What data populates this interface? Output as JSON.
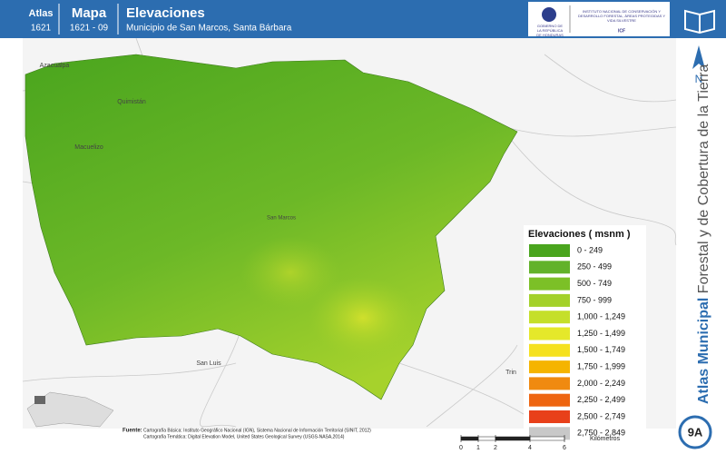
{
  "header": {
    "atlas_label": "Atlas",
    "atlas_code": "1621",
    "map_label": "Mapa",
    "map_code": "1621 - 09",
    "title": "Elevaciones",
    "subtitle": "Municipio de San Marcos, Santa Bárbara"
  },
  "logos": {
    "government": "GOBIERNO DE LA REPÚBLICA DE HONDURAS",
    "institute": "INSTITUTO NACIONAL DE CONSERVACIÓN Y DESARROLLO FORESTAL, ÁREAS PROTEGIDAS Y VIDA SILVESTRE",
    "acronym": "ICF"
  },
  "places": [
    "Azacualpa",
    "Quimistán",
    "Macuelizo",
    "San Marcos",
    "San Luis",
    "Trin"
  ],
  "legend": {
    "title": "Elevaciones ( msnm )",
    "items": [
      {
        "label": "0 - 249",
        "color": "#4aa51e"
      },
      {
        "label": "250 - 499",
        "color": "#62b22a"
      },
      {
        "label": "500 - 749",
        "color": "#7cc027"
      },
      {
        "label": "750 - 999",
        "color": "#a3d12a"
      },
      {
        "label": "1,000 - 1,249",
        "color": "#c5df2a"
      },
      {
        "label": "1,250 - 1,499",
        "color": "#e5e82a"
      },
      {
        "label": "1,500 - 1,749",
        "color": "#f5e11f"
      },
      {
        "label": "1,750 - 1,999",
        "color": "#f5b400"
      },
      {
        "label": "2,000 - 2,249",
        "color": "#f08a10"
      },
      {
        "label": "2,250 - 2,499",
        "color": "#ee6510"
      },
      {
        "label": "2,500 - 2,749",
        "color": "#e8401a"
      },
      {
        "label": "2,750 - 2,849",
        "color": "#c8c8c8"
      }
    ]
  },
  "sidebar": {
    "title_bold": "Atlas Municipal",
    "title_rest": "Forestal y de Cobertura de la Tierra",
    "north": "N",
    "sheet": "9A"
  },
  "footer": {
    "source_label": "Fuente:",
    "sources": [
      "Cartografía Básica: Instituto Geográfico Nacional (IGN), Sistema Nacional de Información Territorial (SINIT, 2012)",
      "Cartografía Temática: Digital Elevation Model, United States Geological Survey (USGS-NASA,2014)"
    ]
  },
  "scale": {
    "ticks": [
      0,
      1,
      2,
      4,
      6
    ],
    "unit": "Kilómetros"
  }
}
